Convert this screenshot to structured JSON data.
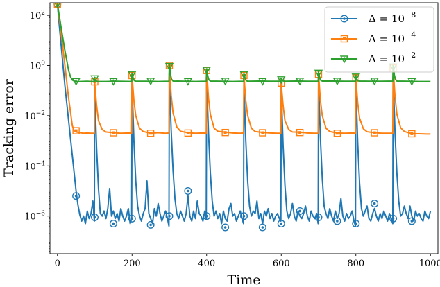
{
  "chart_data": {
    "type": "line",
    "title": "",
    "xlabel": "Time",
    "ylabel": "Tracking error",
    "xlim": [
      -20,
      1020
    ],
    "ylim_log10": [
      -7.5,
      2.5
    ],
    "y_scale": "log",
    "grid": false,
    "legend_position": "top-right",
    "x_ticks": [
      0,
      200,
      400,
      600,
      800,
      1000
    ],
    "y_ticks_exp": [
      -6,
      -4,
      -2,
      0,
      2
    ],
    "series": [
      {
        "name": "Δ = 10^-8",
        "label_base": "Δ = 10",
        "label_exp": "−8",
        "color": "#1f77b4",
        "marker": "circle",
        "x": [
          0,
          5,
          10,
          15,
          20,
          25,
          30,
          35,
          40,
          45,
          50,
          55,
          60,
          65,
          70,
          75,
          80,
          85,
          90,
          95,
          99,
          100,
          101,
          105,
          110,
          115,
          120,
          125,
          130,
          135,
          140,
          145,
          150,
          155,
          160,
          165,
          170,
          175,
          180,
          185,
          190,
          195,
          199,
          200,
          201,
          205,
          210,
          215,
          220,
          225,
          230,
          235,
          240,
          245,
          250,
          255,
          260,
          265,
          270,
          275,
          280,
          285,
          290,
          295,
          299,
          300,
          301,
          305,
          310,
          315,
          320,
          325,
          330,
          335,
          340,
          345,
          350,
          355,
          360,
          365,
          370,
          375,
          380,
          385,
          390,
          395,
          399,
          400,
          401,
          405,
          410,
          415,
          420,
          425,
          430,
          435,
          440,
          445,
          450,
          455,
          460,
          465,
          470,
          475,
          480,
          485,
          490,
          495,
          499,
          500,
          501,
          505,
          510,
          515,
          520,
          525,
          530,
          535,
          540,
          545,
          550,
          555,
          560,
          565,
          570,
          575,
          580,
          585,
          590,
          595,
          599,
          600,
          601,
          605,
          610,
          615,
          620,
          625,
          630,
          635,
          640,
          645,
          650,
          655,
          660,
          665,
          670,
          675,
          680,
          685,
          690,
          695,
          699,
          700,
          701,
          705,
          710,
          715,
          720,
          725,
          730,
          735,
          740,
          745,
          750,
          755,
          760,
          765,
          770,
          775,
          780,
          785,
          790,
          795,
          799,
          800,
          801,
          805,
          810,
          815,
          820,
          825,
          830,
          835,
          840,
          845,
          850,
          855,
          860,
          865,
          870,
          875,
          880,
          885,
          890,
          895,
          899,
          900,
          901,
          905,
          910,
          915,
          920,
          925,
          930,
          935,
          940,
          945,
          950,
          955,
          960,
          965,
          970,
          975,
          980,
          985,
          990,
          995,
          1000
        ],
        "y_log10": [
          2.45,
          1.6,
          0.8,
          0.0,
          -0.8,
          -1.5,
          -2.2,
          -2.9,
          -3.6,
          -4.3,
          -5.0,
          -5.55,
          -5.95,
          -6.2,
          -6.0,
          -6.3,
          -5.8,
          -6.1,
          -5.9,
          -5.4,
          -6.2,
          -0.7,
          -1.5,
          -3.3,
          -4.9,
          -5.9,
          -6.0,
          -5.8,
          -6.1,
          -5.7,
          -4.9,
          -6.0,
          -5.8,
          -6.1,
          -5.9,
          -6.2,
          -5.7,
          -6.0,
          -6.2,
          -6.0,
          -5.7,
          -6.3,
          -6.1,
          -0.4,
          -1.2,
          -3.0,
          -4.6,
          -5.6,
          -6.0,
          -6.2,
          -5.9,
          -5.7,
          -4.6,
          -5.9,
          -6.1,
          -6.3,
          -5.7,
          -6.0,
          -5.5,
          -5.9,
          -6.2,
          -6.0,
          -5.8,
          -6.1,
          -6.4,
          -0.05,
          -0.9,
          -2.6,
          -4.2,
          -5.3,
          -5.9,
          -6.1,
          -5.8,
          -6.0,
          -6.2,
          -5.9,
          -5.2,
          -6.0,
          -6.2,
          -5.8,
          -6.1,
          -5.4,
          -5.9,
          -6.0,
          -6.2,
          -5.8,
          -6.1,
          -0.2,
          -1.0,
          -2.7,
          -4.3,
          -5.4,
          -6.0,
          -5.8,
          -6.1,
          -5.9,
          -6.3,
          -5.8,
          -6.1,
          -6.2,
          -5.7,
          -5.5,
          -6.0,
          -5.9,
          -6.2,
          -6.0,
          -5.8,
          -6.1,
          -6.3,
          -0.4,
          -1.2,
          -3.0,
          -4.6,
          -5.6,
          -6.0,
          -5.8,
          -5.9,
          -5.4,
          -6.1,
          -5.9,
          -6.3,
          -5.8,
          -6.0,
          -5.7,
          -6.1,
          -5.9,
          -6.2,
          -6.0,
          -5.9,
          -6.1,
          -6.2,
          -0.7,
          -1.4,
          -3.2,
          -4.8,
          -5.8,
          -6.1,
          -5.9,
          -5.5,
          -6.0,
          -6.2,
          -5.8,
          -6.0,
          -6.1,
          -5.9,
          -5.6,
          -6.0,
          -6.2,
          -5.8,
          -6.0,
          -6.1,
          -5.9,
          -6.3,
          -0.35,
          -1.1,
          -2.9,
          -4.5,
          -5.6,
          -5.9,
          -6.1,
          -5.7,
          -6.0,
          -6.2,
          -5.8,
          -6.1,
          -5.9,
          -5.3,
          -6.0,
          -6.2,
          -5.9,
          -6.1,
          -6.0,
          -5.8,
          -6.2,
          -6.4,
          -0.5,
          -1.3,
          -3.1,
          -4.7,
          -5.7,
          -6.0,
          -5.8,
          -5.6,
          -6.1,
          -6.2,
          -5.9,
          -5.7,
          -6.0,
          -6.2,
          -5.9,
          -6.1,
          -5.8,
          -6.0,
          -6.2,
          -5.9,
          -6.1,
          -6.3,
          -0.1,
          -0.9,
          -2.7,
          -4.3,
          -5.4,
          -6.0,
          -5.9,
          -5.6,
          -5.9,
          -6.1,
          -5.6,
          -6.0,
          -6.2,
          -5.8,
          -6.0,
          -5.9,
          -6.1,
          -6.2,
          -5.8,
          -6.0,
          -6.1,
          -5.8
        ],
        "marker_x": [
          0,
          50,
          100,
          150,
          200,
          250,
          300,
          350,
          400,
          450,
          500,
          550,
          600,
          650,
          700,
          750,
          800,
          850,
          900,
          950
        ],
        "marker_y_log10": [
          2.45,
          -5.2,
          -6.05,
          -6.3,
          -6.1,
          -6.35,
          -6.0,
          -5.0,
          -6.0,
          -6.45,
          -6.0,
          -6.45,
          -6.3,
          -5.8,
          -6.05,
          -6.2,
          -6.3,
          -5.5,
          -6.1,
          -6.2
        ]
      },
      {
        "name": "Δ = 10^-4",
        "label_base": "Δ = 10",
        "label_exp": "−4",
        "color": "#ff7f0e",
        "marker": "square",
        "x": [
          0,
          10,
          20,
          30,
          40,
          45,
          50,
          60,
          70,
          80,
          90,
          99,
          100,
          101,
          105,
          110,
          120,
          130,
          150,
          170,
          190,
          199,
          200,
          201,
          205,
          210,
          220,
          230,
          250,
          270,
          290,
          299,
          300,
          301,
          305,
          310,
          320,
          330,
          350,
          370,
          390,
          399,
          400,
          401,
          405,
          410,
          420,
          430,
          450,
          470,
          490,
          499,
          500,
          501,
          505,
          510,
          520,
          530,
          550,
          570,
          590,
          599,
          600,
          601,
          605,
          610,
          620,
          630,
          650,
          670,
          690,
          699,
          700,
          701,
          705,
          710,
          720,
          730,
          750,
          770,
          790,
          799,
          800,
          801,
          805,
          810,
          820,
          830,
          850,
          870,
          890,
          899,
          900,
          901,
          905,
          910,
          920,
          930,
          950,
          970,
          990,
          1000
        ],
        "y_log10": [
          2.45,
          1.3,
          0.0,
          -1.3,
          -2.4,
          -2.62,
          -2.65,
          -2.68,
          -2.7,
          -2.69,
          -2.7,
          -2.7,
          -0.7,
          -0.9,
          -1.6,
          -2.2,
          -2.55,
          -2.65,
          -2.68,
          -2.7,
          -2.69,
          -2.7,
          -0.4,
          -0.6,
          -1.4,
          -2.0,
          -2.5,
          -2.63,
          -2.7,
          -2.68,
          -2.7,
          -2.69,
          -0.05,
          -0.3,
          -1.2,
          -1.9,
          -2.45,
          -2.62,
          -2.68,
          -2.7,
          -2.69,
          -2.7,
          -0.2,
          -0.4,
          -1.3,
          -1.95,
          -2.5,
          -2.62,
          -2.66,
          -2.69,
          -2.7,
          -2.69,
          -0.4,
          -0.6,
          -1.4,
          -2.0,
          -2.5,
          -2.63,
          -2.67,
          -2.69,
          -2.7,
          -2.7,
          -0.7,
          -0.9,
          -1.6,
          -2.2,
          -2.55,
          -2.65,
          -2.66,
          -2.69,
          -2.7,
          -2.7,
          -0.35,
          -0.55,
          -1.4,
          -2.0,
          -2.5,
          -2.63,
          -2.69,
          -2.7,
          -2.69,
          -2.7,
          -0.5,
          -0.7,
          -1.5,
          -2.1,
          -2.52,
          -2.64,
          -2.68,
          -2.7,
          -2.7,
          -2.7,
          -0.1,
          -0.35,
          -1.25,
          -1.95,
          -2.48,
          -2.63,
          -2.72,
          -2.72,
          -2.73,
          -2.73
        ],
        "marker_x": [
          0,
          50,
          100,
          150,
          200,
          250,
          300,
          350,
          400,
          450,
          500,
          550,
          600,
          650,
          700,
          750,
          800,
          850,
          900,
          950
        ],
        "marker_y_log10": [
          2.45,
          -2.6,
          -0.65,
          -2.68,
          -0.4,
          -2.7,
          0.0,
          -2.69,
          -0.2,
          -2.67,
          -0.4,
          -2.68,
          -0.7,
          -2.67,
          -0.35,
          -2.7,
          -0.5,
          -2.68,
          -0.1,
          -2.72
        ]
      },
      {
        "name": "Δ = 10^-2",
        "label_base": "Δ = 10",
        "label_exp": "−2",
        "color": "#2ca02c",
        "marker": "triangle-down",
        "x": [
          0,
          10,
          20,
          30,
          35,
          40,
          45,
          50,
          60,
          80,
          99,
          100,
          101,
          103,
          106,
          110,
          130,
          160,
          199,
          200,
          201,
          203,
          206,
          210,
          240,
          270,
          299,
          300,
          301,
          303,
          306,
          310,
          340,
          370,
          399,
          400,
          401,
          403,
          406,
          410,
          440,
          470,
          499,
          500,
          501,
          503,
          506,
          510,
          540,
          570,
          599,
          600,
          601,
          603,
          606,
          610,
          640,
          670,
          699,
          700,
          701,
          703,
          706,
          710,
          740,
          770,
          799,
          800,
          801,
          803,
          806,
          810,
          840,
          870,
          899,
          900,
          901,
          903,
          906,
          910,
          940,
          970,
          1000
        ],
        "y_log10": [
          2.45,
          1.5,
          0.6,
          -0.2,
          -0.45,
          -0.58,
          -0.62,
          -0.64,
          -0.64,
          -0.63,
          -0.64,
          -0.55,
          -0.56,
          -0.6,
          -0.63,
          -0.64,
          -0.64,
          -0.63,
          -0.64,
          -0.35,
          -0.37,
          -0.5,
          -0.6,
          -0.63,
          -0.63,
          -0.64,
          -0.63,
          -0.03,
          -0.05,
          -0.35,
          -0.55,
          -0.62,
          -0.63,
          -0.64,
          -0.63,
          -0.18,
          -0.2,
          -0.42,
          -0.57,
          -0.62,
          -0.63,
          -0.64,
          -0.63,
          -0.35,
          -0.37,
          -0.5,
          -0.6,
          -0.63,
          -0.62,
          -0.63,
          -0.63,
          -0.56,
          -0.57,
          -0.6,
          -0.62,
          -0.63,
          -0.62,
          -0.63,
          -0.63,
          -0.3,
          -0.32,
          -0.48,
          -0.59,
          -0.62,
          -0.62,
          -0.63,
          -0.63,
          -0.45,
          -0.47,
          -0.55,
          -0.61,
          -0.62,
          -0.63,
          -0.63,
          -0.62,
          -0.05,
          -0.07,
          -0.37,
          -0.55,
          -0.62,
          -0.63,
          -0.64,
          -0.64
        ],
        "marker_x": [
          0,
          50,
          100,
          150,
          200,
          250,
          300,
          350,
          400,
          450,
          500,
          550,
          600,
          650,
          700,
          750,
          800,
          850,
          900,
          950
        ],
        "marker_y_log10": [
          2.45,
          -0.63,
          -0.52,
          -0.63,
          -0.35,
          -0.62,
          -0.03,
          -0.63,
          -0.18,
          -0.62,
          -0.35,
          -0.63,
          -0.56,
          -0.62,
          -0.3,
          -0.62,
          -0.45,
          -0.62,
          -0.05,
          -0.63
        ]
      }
    ]
  }
}
